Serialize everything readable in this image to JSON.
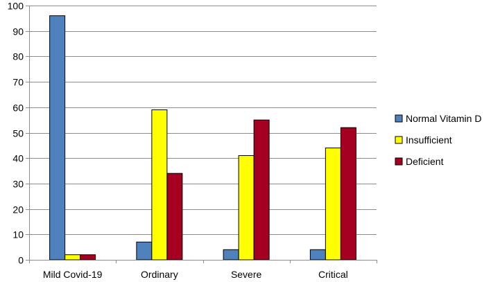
{
  "chart_data": {
    "type": "bar",
    "categories": [
      "Mild Covid-19",
      "Ordinary",
      "Severe",
      "Critical"
    ],
    "series": [
      {
        "name": "Normal Vitamin D",
        "values": [
          96,
          7,
          4,
          4
        ],
        "color": "#4F81BD"
      },
      {
        "name": "Insufficient",
        "values": [
          2,
          59,
          41,
          44
        ],
        "color": "#FFFF00"
      },
      {
        "name": "Deficient",
        "values": [
          2,
          34,
          55,
          52
        ],
        "color": "#A50021"
      }
    ],
    "title": "",
    "xlabel": "",
    "ylabel": "",
    "ylim": [
      0,
      100
    ],
    "yticks": [
      0,
      10,
      20,
      30,
      40,
      50,
      60,
      70,
      80,
      90,
      100
    ],
    "grid": true,
    "legend_position": "right"
  }
}
